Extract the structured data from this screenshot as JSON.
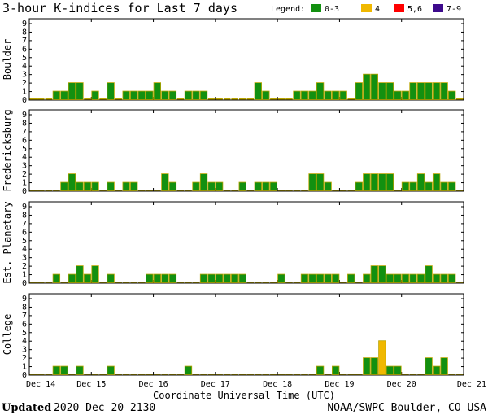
{
  "title": "3-hour K-indices for Last 7 days",
  "legend": {
    "label": "Legend:",
    "items": [
      {
        "label": "0-3",
        "color": "#129010"
      },
      {
        "label": "4",
        "color": "#f0b800"
      },
      {
        "label": "5,6",
        "color": "#ff0000"
      },
      {
        "label": "7-9",
        "color": "#3d0a8c"
      }
    ]
  },
  "xlabel": "Coordinate Universal Time (UTC)",
  "footer": {
    "updated_label": "Updated",
    "updated_value": "2020 Dec 20 2130",
    "credit": "NOAA/SWPC Boulder, CO USA"
  },
  "chart_data": {
    "type": "bar",
    "x_ticks": [
      "Dec 14",
      "Dec 15",
      "Dec 16",
      "Dec 17",
      "Dec 18",
      "Dec 19",
      "Dec 20",
      "Dec 21"
    ],
    "y_ticks": [
      "0",
      "1",
      "2",
      "3",
      "4",
      "5",
      "6",
      "7",
      "8",
      "9"
    ],
    "ylim": [
      0,
      9
    ],
    "bars_per_day": 8,
    "panels": [
      {
        "name": "Boulder",
        "values": [
          0,
          0,
          0,
          1,
          1,
          2,
          2,
          0,
          1,
          0,
          2,
          0,
          1,
          1,
          1,
          1,
          2,
          1,
          1,
          0,
          1,
          1,
          1,
          0,
          0,
          0,
          0,
          0,
          0,
          2,
          1,
          0,
          0,
          0,
          1,
          1,
          1,
          2,
          1,
          1,
          1,
          0,
          2,
          3,
          3,
          2,
          2,
          1,
          1,
          2,
          2,
          2,
          2,
          2,
          1,
          0
        ]
      },
      {
        "name": "Fredericksburg",
        "values": [
          0,
          0,
          0,
          0,
          1,
          2,
          1,
          1,
          1,
          0,
          1,
          0,
          1,
          1,
          0,
          0,
          0,
          2,
          1,
          0,
          0,
          1,
          2,
          1,
          1,
          0,
          0,
          1,
          0,
          1,
          1,
          1,
          0,
          0,
          0,
          0,
          2,
          2,
          1,
          0,
          0,
          0,
          1,
          2,
          2,
          2,
          2,
          0,
          1,
          1,
          2,
          1,
          2,
          1,
          1,
          0
        ]
      },
      {
        "name": "Est. Planetary",
        "values": [
          0,
          0,
          0,
          1,
          0,
          1,
          2,
          1,
          2,
          0,
          1,
          0,
          0,
          0,
          0,
          1,
          1,
          1,
          1,
          0,
          0,
          0,
          1,
          1,
          1,
          1,
          1,
          1,
          0,
          0,
          0,
          0,
          1,
          0,
          0,
          1,
          1,
          1,
          1,
          1,
          0,
          1,
          0,
          1,
          2,
          2,
          1,
          1,
          1,
          1,
          1,
          2,
          1,
          1,
          1,
          0
        ]
      },
      {
        "name": "College",
        "values": [
          0,
          0,
          0,
          1,
          1,
          0,
          1,
          0,
          0,
          0,
          1,
          0,
          0,
          0,
          0,
          0,
          0,
          0,
          0,
          0,
          1,
          0,
          0,
          0,
          0,
          0,
          0,
          0,
          0,
          0,
          0,
          0,
          0,
          0,
          0,
          0,
          0,
          1,
          0,
          1,
          0,
          0,
          0,
          2,
          2,
          4,
          1,
          1,
          0,
          0,
          0,
          2,
          1,
          2,
          0,
          0
        ]
      }
    ]
  }
}
